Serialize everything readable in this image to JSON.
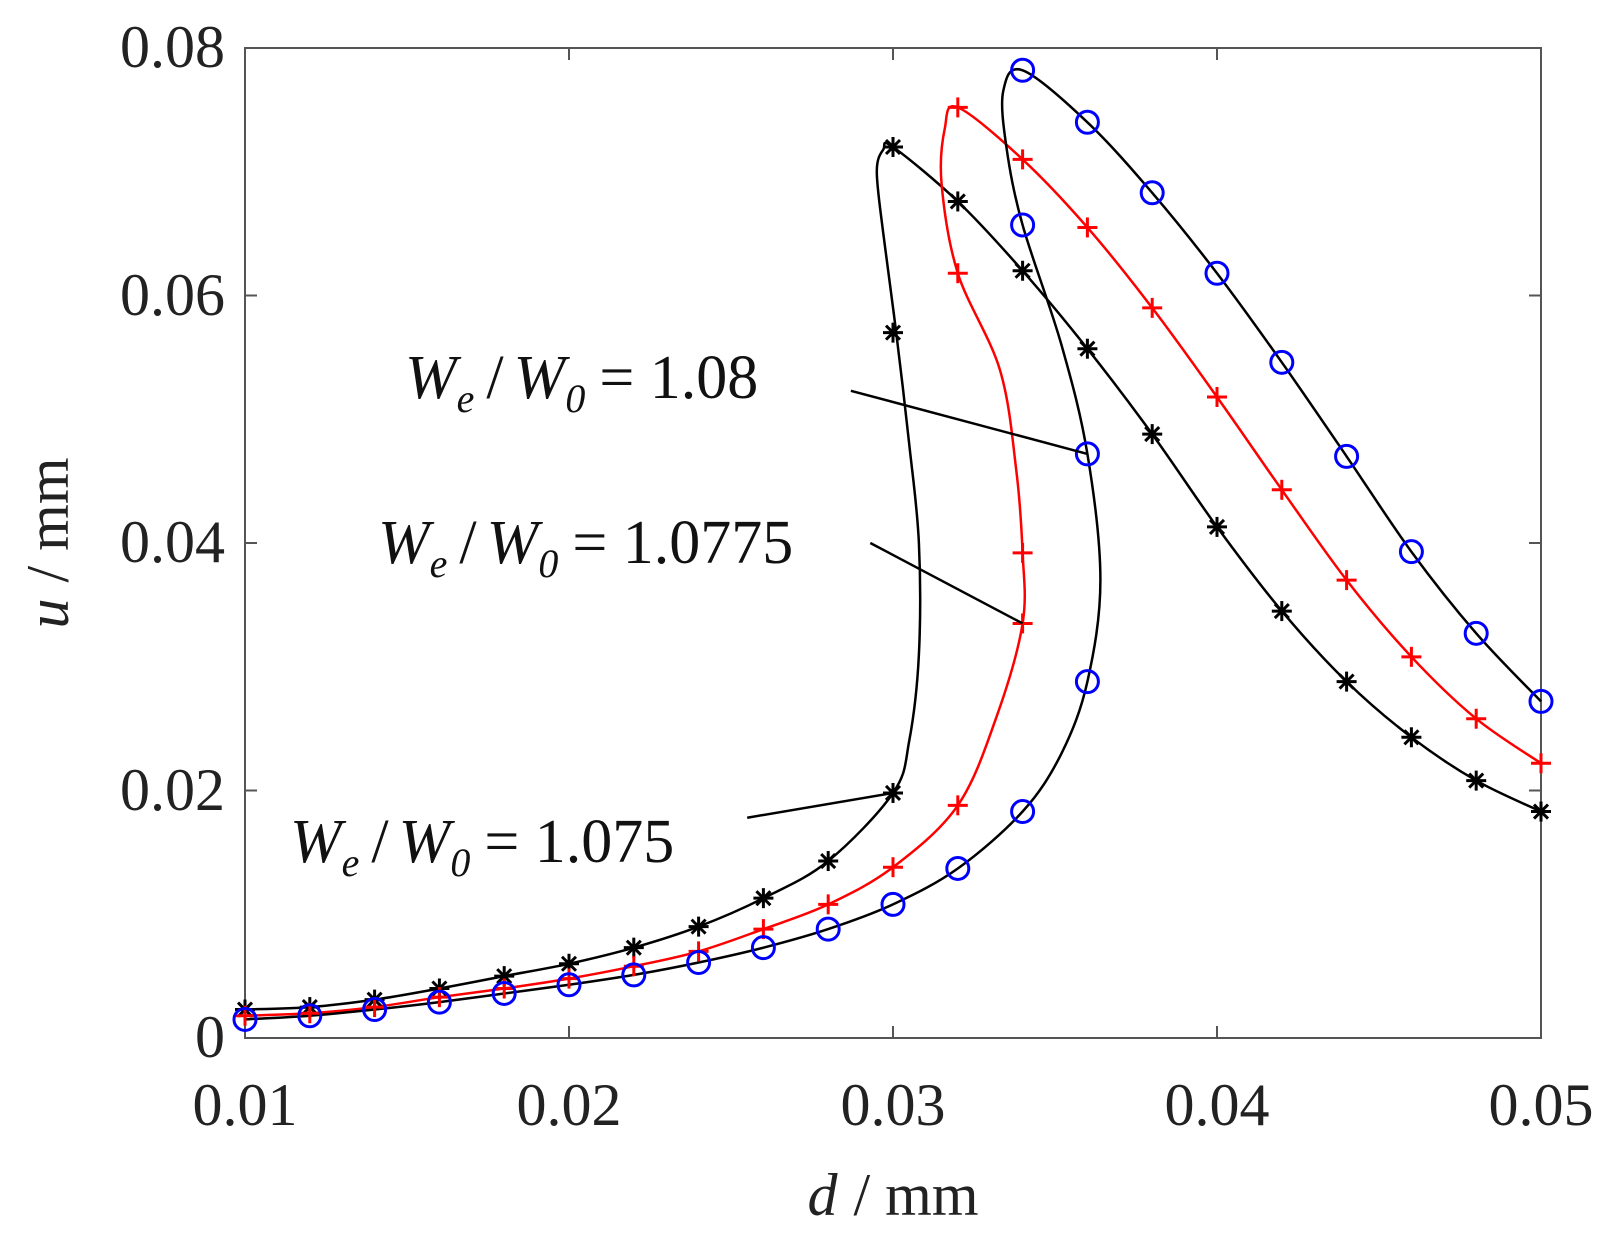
{
  "chart_data": {
    "type": "line",
    "title": "",
    "xlabel": {
      "var": "d",
      "unit": "/ mm"
    },
    "ylabel": {
      "var": "u",
      "unit": "/ mm"
    },
    "xlim": [
      0.01,
      0.05
    ],
    "ylim": [
      0,
      0.08
    ],
    "xticks": [
      "0.01",
      "0.02",
      "0.03",
      "0.04",
      "0.05"
    ],
    "yticks": [
      "0",
      "0.02",
      "0.04",
      "0.06",
      "0.08"
    ],
    "grid": false,
    "legend": "none",
    "series": [
      {
        "name": "W_e/W_0 = 1.075",
        "color": "#000000",
        "marker": "asterisk",
        "points": [
          [
            0.01,
            0.0023
          ],
          [
            0.012,
            0.0025
          ],
          [
            0.014,
            0.0031
          ],
          [
            0.016,
            0.004
          ],
          [
            0.018,
            0.005
          ],
          [
            0.02,
            0.006
          ],
          [
            0.022,
            0.0073
          ],
          [
            0.024,
            0.009
          ],
          [
            0.026,
            0.0113
          ],
          [
            0.028,
            0.0143
          ],
          [
            0.03,
            0.0198
          ],
          [
            0.03,
            0.057
          ],
          [
            0.03,
            0.072
          ],
          [
            0.032,
            0.0676
          ],
          [
            0.034,
            0.062
          ],
          [
            0.036,
            0.0557
          ],
          [
            0.038,
            0.0488
          ],
          [
            0.04,
            0.0413
          ],
          [
            0.042,
            0.0345
          ],
          [
            0.044,
            0.0288
          ],
          [
            0.046,
            0.0243
          ],
          [
            0.048,
            0.0208
          ],
          [
            0.05,
            0.0183
          ]
        ],
        "curve": [
          [
            0.01,
            0.0023
          ],
          [
            0.012,
            0.0025
          ],
          [
            0.014,
            0.0031
          ],
          [
            0.016,
            0.004
          ],
          [
            0.018,
            0.005
          ],
          [
            0.02,
            0.006
          ],
          [
            0.022,
            0.0073
          ],
          [
            0.024,
            0.009
          ],
          [
            0.026,
            0.0113
          ],
          [
            0.028,
            0.0143
          ],
          [
            0.03,
            0.0198
          ],
          [
            0.0305,
            0.024
          ],
          [
            0.0308,
            0.031
          ],
          [
            0.0308,
            0.04
          ],
          [
            0.0305,
            0.048
          ],
          [
            0.0301,
            0.057
          ],
          [
            0.0297,
            0.065
          ],
          [
            0.0295,
            0.07
          ],
          [
            0.0297,
            0.0718
          ],
          [
            0.03,
            0.072
          ],
          [
            0.032,
            0.0676
          ],
          [
            0.034,
            0.062
          ],
          [
            0.036,
            0.0557
          ],
          [
            0.038,
            0.0488
          ],
          [
            0.04,
            0.0413
          ],
          [
            0.042,
            0.0345
          ],
          [
            0.044,
            0.0288
          ],
          [
            0.046,
            0.0243
          ],
          [
            0.048,
            0.0208
          ],
          [
            0.05,
            0.0183
          ]
        ]
      },
      {
        "name": "W_e/W_0 = 1.0775",
        "color": "#ff0000",
        "marker": "plus",
        "points": [
          [
            0.01,
            0.0018
          ],
          [
            0.012,
            0.002
          ],
          [
            0.014,
            0.0025
          ],
          [
            0.016,
            0.0033
          ],
          [
            0.018,
            0.004
          ],
          [
            0.02,
            0.0048
          ],
          [
            0.022,
            0.0058
          ],
          [
            0.024,
            0.007
          ],
          [
            0.026,
            0.0088
          ],
          [
            0.028,
            0.0108
          ],
          [
            0.03,
            0.0138
          ],
          [
            0.032,
            0.0188
          ],
          [
            0.034,
            0.0335
          ],
          [
            0.034,
            0.0392
          ],
          [
            0.032,
            0.0618
          ],
          [
            0.032,
            0.0752
          ],
          [
            0.034,
            0.071
          ],
          [
            0.036,
            0.0655
          ],
          [
            0.038,
            0.059
          ],
          [
            0.04,
            0.0518
          ],
          [
            0.042,
            0.0443
          ],
          [
            0.044,
            0.037
          ],
          [
            0.046,
            0.0308
          ],
          [
            0.048,
            0.0258
          ],
          [
            0.05,
            0.0222
          ]
        ],
        "curve": [
          [
            0.01,
            0.0018
          ],
          [
            0.012,
            0.002
          ],
          [
            0.014,
            0.0025
          ],
          [
            0.016,
            0.0033
          ],
          [
            0.018,
            0.004
          ],
          [
            0.02,
            0.0048
          ],
          [
            0.022,
            0.0058
          ],
          [
            0.024,
            0.007
          ],
          [
            0.026,
            0.0088
          ],
          [
            0.028,
            0.0108
          ],
          [
            0.03,
            0.0138
          ],
          [
            0.032,
            0.0188
          ],
          [
            0.0332,
            0.026
          ],
          [
            0.034,
            0.0335
          ],
          [
            0.034,
            0.0392
          ],
          [
            0.0338,
            0.046
          ],
          [
            0.0333,
            0.054
          ],
          [
            0.032,
            0.0618
          ],
          [
            0.0315,
            0.069
          ],
          [
            0.0316,
            0.0735
          ],
          [
            0.032,
            0.0752
          ],
          [
            0.034,
            0.071
          ],
          [
            0.036,
            0.0655
          ],
          [
            0.038,
            0.059
          ],
          [
            0.04,
            0.0518
          ],
          [
            0.042,
            0.0443
          ],
          [
            0.044,
            0.037
          ],
          [
            0.046,
            0.0308
          ],
          [
            0.048,
            0.0258
          ],
          [
            0.05,
            0.0222
          ]
        ]
      },
      {
        "name": "W_e/W_0 = 1.08",
        "color": "#0000ff",
        "line_color": "#000000",
        "marker": "circle",
        "points": [
          [
            0.01,
            0.0015
          ],
          [
            0.012,
            0.0018
          ],
          [
            0.014,
            0.0023
          ],
          [
            0.016,
            0.0029
          ],
          [
            0.018,
            0.0036
          ],
          [
            0.02,
            0.0043
          ],
          [
            0.022,
            0.0051
          ],
          [
            0.024,
            0.0061
          ],
          [
            0.026,
            0.0073
          ],
          [
            0.028,
            0.0088
          ],
          [
            0.03,
            0.0108
          ],
          [
            0.032,
            0.0137
          ],
          [
            0.034,
            0.0183
          ],
          [
            0.036,
            0.0288
          ],
          [
            0.036,
            0.0472
          ],
          [
            0.034,
            0.0657
          ],
          [
            0.034,
            0.0782
          ],
          [
            0.036,
            0.074
          ],
          [
            0.038,
            0.0683
          ],
          [
            0.04,
            0.0618
          ],
          [
            0.042,
            0.0546
          ],
          [
            0.044,
            0.047
          ],
          [
            0.046,
            0.0393
          ],
          [
            0.048,
            0.0327
          ],
          [
            0.05,
            0.0272
          ]
        ],
        "curve": [
          [
            0.01,
            0.0015
          ],
          [
            0.012,
            0.0018
          ],
          [
            0.014,
            0.0023
          ],
          [
            0.016,
            0.0029
          ],
          [
            0.018,
            0.0036
          ],
          [
            0.02,
            0.0043
          ],
          [
            0.022,
            0.0051
          ],
          [
            0.024,
            0.0061
          ],
          [
            0.026,
            0.0073
          ],
          [
            0.028,
            0.0088
          ],
          [
            0.03,
            0.0108
          ],
          [
            0.032,
            0.0137
          ],
          [
            0.034,
            0.0183
          ],
          [
            0.0352,
            0.023
          ],
          [
            0.036,
            0.0288
          ],
          [
            0.0364,
            0.037
          ],
          [
            0.036,
            0.0472
          ],
          [
            0.0352,
            0.056
          ],
          [
            0.034,
            0.0657
          ],
          [
            0.0335,
            0.072
          ],
          [
            0.0334,
            0.0765
          ],
          [
            0.034,
            0.0782
          ],
          [
            0.036,
            0.074
          ],
          [
            0.038,
            0.0683
          ],
          [
            0.04,
            0.0618
          ],
          [
            0.042,
            0.0546
          ],
          [
            0.044,
            0.047
          ],
          [
            0.046,
            0.0393
          ],
          [
            0.048,
            0.0327
          ],
          [
            0.05,
            0.0272
          ]
        ]
      }
    ],
    "annotations": [
      {
        "text": "W_e/W_0 = 1.08",
        "var1": "W",
        "sub1": "e",
        "sep": "/",
        "var2": "W",
        "sub2": "0",
        "value": "= 1.08",
        "target": [
          0.036,
          0.0472
        ],
        "anchor": [
          0.0287,
          0.0523
        ]
      },
      {
        "text": "W_e/W_0 = 1.0775",
        "var1": "W",
        "sub1": "e",
        "sep": "/",
        "var2": "W",
        "sub2": "0",
        "value": "= 1.0775",
        "target": [
          0.034,
          0.0335
        ],
        "anchor": [
          0.0293,
          0.04
        ]
      },
      {
        "text": "W_e/W_0 = 1.075",
        "var1": "W",
        "sub1": "e",
        "sep": "/",
        "var2": "W",
        "sub2": "0",
        "value": "= 1.075",
        "target": [
          0.03,
          0.0198
        ],
        "anchor": [
          0.0255,
          0.0178
        ]
      }
    ]
  }
}
